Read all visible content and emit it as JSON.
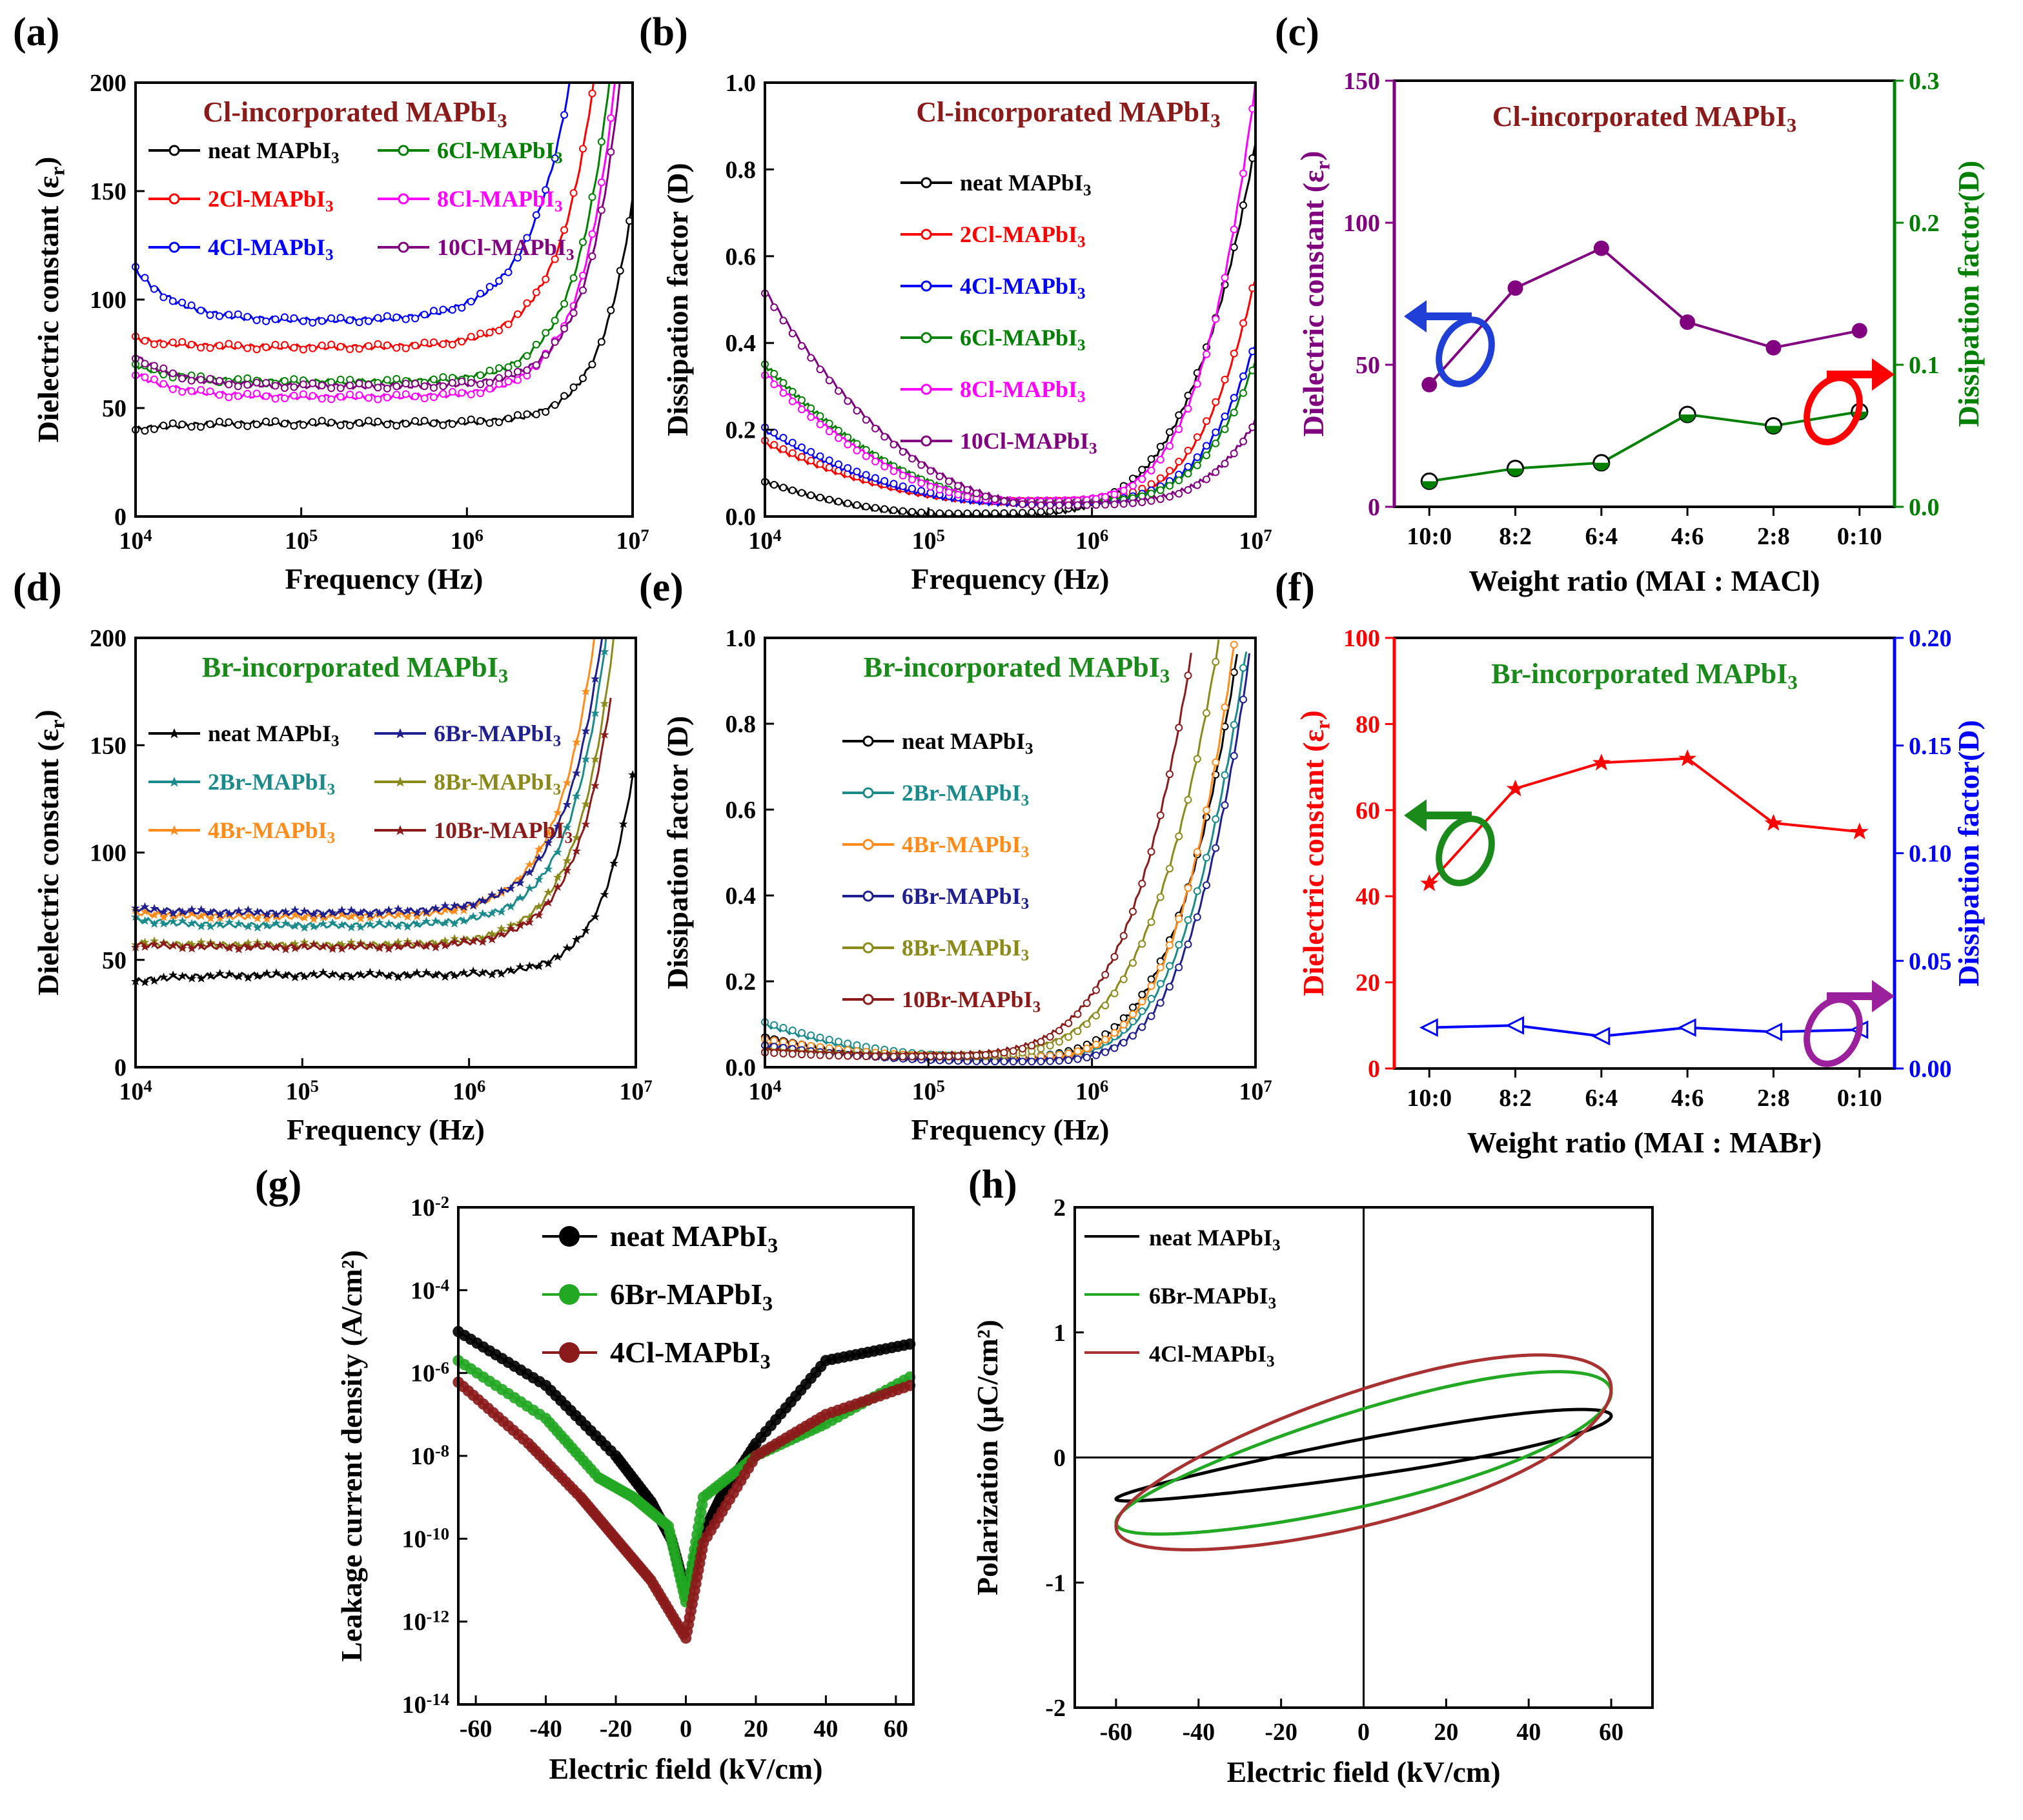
{
  "figure": {
    "panels": [
      {
        "id": "a",
        "label": "(a)"
      },
      {
        "id": "b",
        "label": "(b)"
      },
      {
        "id": "c",
        "label": "(c)"
      },
      {
        "id": "d",
        "label": "(d)"
      },
      {
        "id": "e",
        "label": "(e)"
      },
      {
        "id": "f",
        "label": "(f)"
      },
      {
        "id": "g",
        "label": "(g)"
      },
      {
        "id": "h",
        "label": "(h)"
      }
    ]
  },
  "chart_data": [
    {
      "id": "a",
      "type": "line",
      "title": "Cl-incorporated MAPbI3",
      "xlabel": "Frequency (Hz)",
      "ylabel": "Dielectric constant (εr)",
      "xscale": "log",
      "xlim": [
        10000,
        10000000
      ],
      "ylim": [
        0,
        200
      ],
      "xticks": [
        10000,
        100000,
        1000000,
        10000000
      ],
      "xtick_labels": [
        "10^4",
        "10^5",
        "10^6",
        "10^7"
      ],
      "yticks": [
        0,
        50,
        100,
        150,
        200
      ],
      "legend": "top-left",
      "series": [
        {
          "name": "neat MAPbI3",
          "color": "#000000",
          "base": 43,
          "onset": 3000000,
          "k": 2.3,
          "start_bump": -3,
          "xmax": 10000000
        },
        {
          "name": "2Cl-MAPbI3",
          "color": "#ff0000",
          "base": 78,
          "onset": 1800000,
          "k": 2.0,
          "start_bump": 4,
          "xmax": 7000000
        },
        {
          "name": "4Cl-MAPbI3",
          "color": "#0000ff",
          "base": 90,
          "onset": 1300000,
          "k": 1.8,
          "start_bump": 24,
          "xmax": 6300000
        },
        {
          "name": "6Cl-MAPbI3",
          "color": "#008000",
          "base": 62,
          "onset": 2000000,
          "k": 2.1,
          "start_bump": 8,
          "xmax": 8200000
        },
        {
          "name": "8Cl-MAPbI3",
          "color": "#ff00ff",
          "base": 55,
          "onset": 2000000,
          "k": 2.1,
          "start_bump": 11,
          "xmax": 8600000
        },
        {
          "name": "10Cl-MAPbI3",
          "color": "#800080",
          "base": 60,
          "onset": 2400000,
          "k": 2.2,
          "start_bump": 14,
          "xmax": 9300000
        }
      ]
    },
    {
      "id": "b",
      "type": "line",
      "title": "Cl-incorporated MAPbI3",
      "xlabel": "Frequency (Hz)",
      "ylabel": "Dissipation factor (D)",
      "xscale": "log",
      "xlim": [
        10000,
        10000000
      ],
      "ylim": [
        0,
        1.0
      ],
      "xticks": [
        10000,
        100000,
        1000000,
        10000000
      ],
      "xtick_labels": [
        "10^4",
        "10^5",
        "10^6",
        "10^7"
      ],
      "yticks": [
        0.0,
        0.2,
        0.4,
        0.6,
        0.8,
        1.0
      ],
      "legend": "right",
      "series": [
        {
          "name": "neat MAPbI3",
          "color": "#000000",
          "y0": 0.08,
          "ymin": 0.005,
          "xmin": 150000,
          "yend": 0.86
        },
        {
          "name": "2Cl-MAPbI3",
          "color": "#ff0000",
          "y0": 0.17,
          "ymin": 0.03,
          "xmin": 350000,
          "yend": 0.55
        },
        {
          "name": "4Cl-MAPbI3",
          "color": "#0000ff",
          "y0": 0.2,
          "ymin": 0.03,
          "xmin": 350000,
          "yend": 0.4
        },
        {
          "name": "6Cl-MAPbI3",
          "color": "#008000",
          "y0": 0.35,
          "ymin": 0.035,
          "xmin": 400000,
          "yend": 0.36
        },
        {
          "name": "8Cl-MAPbI3",
          "color": "#ff00ff",
          "y0": 0.33,
          "ymin": 0.04,
          "xmin": 350000,
          "yend": 1.0
        },
        {
          "name": "10Cl-MAPbI3",
          "color": "#800080",
          "y0": 0.52,
          "ymin": 0.03,
          "xmin": 500000,
          "yend": 0.22
        }
      ]
    },
    {
      "id": "c",
      "type": "line",
      "title": "Cl-incorporated MAPbI3",
      "xlabel": "Weight ratio (MAI : MACl)",
      "ylabel": "Dielectric constant (εr)",
      "y2label": "Dissipation factor(D)",
      "categories": [
        "10:0",
        "8:2",
        "6:4",
        "4:6",
        "2:8",
        "0:10"
      ],
      "ylim": [
        0,
        150
      ],
      "yticks": [
        0,
        50,
        100,
        150
      ],
      "y2lim": [
        0,
        0.3
      ],
      "y2ticks": [
        0.0,
        0.1,
        0.2,
        0.3
      ],
      "series": [
        {
          "name": "Dielectric constant",
          "axis": "left",
          "color": "#800080",
          "values": [
            43,
            77,
            91,
            65,
            56,
            62
          ]
        },
        {
          "name": "Dissipation factor",
          "axis": "right",
          "color": "#008000",
          "values": [
            0.018,
            0.027,
            0.031,
            0.065,
            0.057,
            0.067
          ]
        }
      ]
    },
    {
      "id": "d",
      "type": "line",
      "title": "Br-incorporated MAPbI3",
      "xlabel": "Frequency (Hz)",
      "ylabel": "Dielectric constant (εr)",
      "xscale": "log",
      "xlim": [
        10000,
        10000000
      ],
      "ylim": [
        0,
        200
      ],
      "xticks": [
        10000,
        100000,
        1000000,
        10000000
      ],
      "xtick_labels": [
        "10^4",
        "10^5",
        "10^6",
        "10^7"
      ],
      "yticks": [
        0,
        50,
        100,
        150,
        200
      ],
      "legend": "left",
      "series": [
        {
          "name": "neat MAPbI3",
          "color": "#000000",
          "base": 43,
          "onset": 3000000,
          "k": 2.3,
          "start_bump": -3,
          "xmax": 9600000
        },
        {
          "name": "2Br-MAPbI3",
          "color": "#1a8a8a",
          "base": 66,
          "onset": 1800000,
          "k": 2.0,
          "start_bump": 3,
          "xmax": 8400000
        },
        {
          "name": "4Br-MAPbI3",
          "color": "#ff8c1a",
          "base": 70,
          "onset": 1500000,
          "k": 1.9,
          "start_bump": 2,
          "xmax": 7000000
        },
        {
          "name": "6Br-MAPbI3",
          "color": "#1f1f8f",
          "base": 72,
          "onset": 1700000,
          "k": 1.9,
          "start_bump": 2,
          "xmax": 8200000
        },
        {
          "name": "8Br-MAPbI3",
          "color": "#8a8a1a",
          "base": 57,
          "onset": 1800000,
          "k": 2.0,
          "start_bump": 1,
          "xmax": 7600000
        },
        {
          "name": "10Br-MAPbI3",
          "color": "#8b1a1a",
          "base": 56,
          "onset": 1900000,
          "k": 2.0,
          "start_bump": 1,
          "xmax": 7300000
        }
      ]
    },
    {
      "id": "e",
      "type": "line",
      "title": "Br-incorporated MAPbI3",
      "xlabel": "Frequency (Hz)",
      "ylabel": "Dissipation factor (D)",
      "xscale": "log",
      "xlim": [
        10000,
        10000000
      ],
      "ylim": [
        0,
        1.0
      ],
      "xticks": [
        10000,
        100000,
        1000000,
        10000000
      ],
      "xtick_labels": [
        "10^4",
        "10^5",
        "10^6",
        "10^7"
      ],
      "yticks": [
        0.0,
        0.2,
        0.4,
        0.6,
        0.8,
        1.0
      ],
      "legend": "right",
      "series": [
        {
          "name": "neat MAPbI3",
          "color": "#000000",
          "y0": 0.07,
          "ymin": 0.02,
          "xmin": 150000,
          "yend": 1.0,
          "xend": 8000000
        },
        {
          "name": "2Br-MAPbI3",
          "color": "#1a8a8a",
          "y0": 0.1,
          "ymin": 0.02,
          "xmin": 200000,
          "yend": 1.0,
          "xend": 9000000
        },
        {
          "name": "4Br-MAPbI3",
          "color": "#ff8c1a",
          "y0": 0.06,
          "ymin": 0.02,
          "xmin": 200000,
          "yend": 1.0,
          "xend": 7500000
        },
        {
          "name": "6Br-MAPbI3",
          "color": "#1f1f8f",
          "y0": 0.05,
          "ymin": 0.015,
          "xmin": 250000,
          "yend": 1.0,
          "xend": 9500000
        },
        {
          "name": "8Br-MAPbI3",
          "color": "#8a8a1a",
          "y0": 0.04,
          "ymin": 0.03,
          "xmin": 80000,
          "yend": 1.0,
          "xend": 6000000
        },
        {
          "name": "10Br-MAPbI3",
          "color": "#8b1a1a",
          "y0": 0.04,
          "ymin": 0.03,
          "xmin": 70000,
          "yend": 1.0,
          "xend": 4200000
        }
      ]
    },
    {
      "id": "f",
      "type": "line",
      "title": "Br-incorporated MAPbI3",
      "xlabel": "Weight ratio (MAI : MABr)",
      "ylabel": "Dielectric constant (εr)",
      "y2label": "Dissipation factor(D)",
      "categories": [
        "10:0",
        "8:2",
        "6:4",
        "4:6",
        "2:8",
        "0:10"
      ],
      "ylim": [
        0,
        100
      ],
      "yticks": [
        0,
        20,
        40,
        60,
        80,
        100
      ],
      "y2lim": [
        0,
        0.2
      ],
      "y2ticks": [
        0.0,
        0.05,
        0.1,
        0.15,
        0.2
      ],
      "series": [
        {
          "name": "Dielectric constant",
          "axis": "left",
          "color": "#ff0000",
          "values": [
            43,
            65,
            71,
            72,
            57,
            55
          ]
        },
        {
          "name": "Dissipation factor",
          "axis": "right",
          "color": "#0000ff",
          "values": [
            0.019,
            0.02,
            0.015,
            0.019,
            0.017,
            0.018
          ]
        }
      ]
    },
    {
      "id": "g",
      "type": "line",
      "xlabel": "Electric field (kV/cm)",
      "ylabel": "Leakage current density (A/cm²)",
      "yscale": "log",
      "xlim": [
        -65,
        65
      ],
      "ylim": [
        1e-14,
        0.01
      ],
      "xticks": [
        -60,
        -40,
        -20,
        0,
        20,
        40,
        60
      ],
      "yticks": [
        1e-14,
        1e-12,
        1e-10,
        1e-08,
        1e-06,
        0.0001,
        0.01
      ],
      "ytick_labels": [
        "10^-14",
        "10^-12",
        "10^-10",
        "10^-8",
        "10^-6",
        "10^-4",
        "10^-2"
      ],
      "legend": "top-left",
      "series": [
        {
          "name": "neat MAPbI3",
          "color": "#000000",
          "points": [
            [
              -65,
              1e-05
            ],
            [
              -40,
              5e-07
            ],
            [
              -20,
              1e-08
            ],
            [
              -10,
              8e-10
            ],
            [
              -4,
              9e-11
            ],
            [
              0,
              5e-12
            ],
            [
              4,
              9e-11
            ],
            [
              10,
              1e-09
            ],
            [
              20,
              2e-08
            ],
            [
              40,
              2e-06
            ],
            [
              64,
              5e-06
            ]
          ]
        },
        {
          "name": "6Br-MAPbI3",
          "color": "#22a822",
          "points": [
            [
              -65,
              2e-06
            ],
            [
              -40,
              8e-08
            ],
            [
              -25,
              3e-09
            ],
            [
              -15,
              1e-09
            ],
            [
              -5,
              2e-10
            ],
            [
              0,
              3e-12
            ],
            [
              5,
              1e-09
            ],
            [
              20,
              1e-08
            ],
            [
              40,
              6e-08
            ],
            [
              64,
              8e-07
            ]
          ]
        },
        {
          "name": "4Cl-MAPbI3",
          "color": "#8b1a1a",
          "points": [
            [
              -65,
              6e-07
            ],
            [
              -45,
              2e-08
            ],
            [
              -30,
              1e-09
            ],
            [
              -20,
              1e-10
            ],
            [
              -10,
              1e-11
            ],
            [
              0,
              4e-13
            ],
            [
              5,
              8e-11
            ],
            [
              20,
              1e-08
            ],
            [
              40,
              1e-07
            ],
            [
              64,
              5e-07
            ]
          ]
        }
      ]
    },
    {
      "id": "h",
      "type": "line",
      "xlabel": "Electric field (kV/cm)",
      "ylabel": "Polarization (μC/cm²)",
      "xlim": [
        -70,
        70
      ],
      "ylim": [
        -2,
        2
      ],
      "xticks": [
        -60,
        -40,
        -20,
        0,
        20,
        40,
        60
      ],
      "yticks": [
        -2,
        -1,
        0,
        1,
        2
      ],
      "legend": "top-left",
      "series": [
        {
          "name": "neat MAPbI3",
          "color": "#000000",
          "Pmax": 0.41,
          "Pr": 0.15,
          "Emax": 60
        },
        {
          "name": "6Br-MAPbI3",
          "color": "#22a822",
          "Pmax": 0.64,
          "Pr": 0.39,
          "Emax": 60
        },
        {
          "name": "4Cl-MAPbI3",
          "color": "#a83232",
          "Pmax": 0.68,
          "Pr": 0.55,
          "Emax": 60
        }
      ]
    }
  ]
}
